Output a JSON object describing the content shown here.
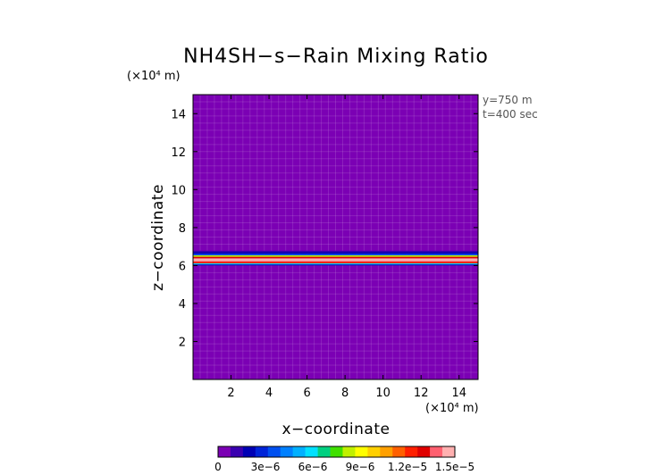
{
  "chart_data": {
    "type": "heatmap",
    "title": "NH4SH−s−Rain Mixing Ratio",
    "xlabel": "x−coordinate",
    "ylabel": "z−coordinate",
    "x_unit": "(×10⁴ m)",
    "z_unit": "(×10⁴ m)",
    "annotations": [
      "y=750 m",
      "t=400 sec"
    ],
    "xlim": [
      0,
      15
    ],
    "zlim": [
      0,
      15
    ],
    "x_ticks": [
      {
        "value": 2,
        "label": "2"
      },
      {
        "value": 4,
        "label": "4"
      },
      {
        "value": 6,
        "label": "6"
      },
      {
        "value": 8,
        "label": "8"
      },
      {
        "value": 10,
        "label": "10"
      },
      {
        "value": 12,
        "label": "12"
      },
      {
        "value": 14,
        "label": "14"
      }
    ],
    "z_ticks": [
      {
        "value": 2,
        "label": "2"
      },
      {
        "value": 4,
        "label": "4"
      },
      {
        "value": 6,
        "label": "6"
      },
      {
        "value": 8,
        "label": "8"
      },
      {
        "value": 10,
        "label": "10"
      },
      {
        "value": 12,
        "label": "12"
      },
      {
        "value": 14,
        "label": "14"
      }
    ],
    "background_value": 0,
    "layer_profile": [
      {
        "z": 6.0,
        "value": 2e-06
      },
      {
        "z": 6.06,
        "value": 6e-06
      },
      {
        "z": 6.12,
        "value": 1.2e-05
      },
      {
        "z": 6.22,
        "value": 1.45e-05
      },
      {
        "z": 6.3,
        "value": 1.5e-05
      },
      {
        "z": 6.38,
        "value": 1.3e-05
      },
      {
        "z": 6.46,
        "value": 8.5e-06
      },
      {
        "z": 6.54,
        "value": 3.5e-06
      },
      {
        "z": 6.62,
        "value": 2.2e-06
      },
      {
        "z": 6.7,
        "value": 1.5e-06
      },
      {
        "z": 6.78,
        "value": 0
      }
    ],
    "colorbar": {
      "min": 0,
      "max": 1.5e-05,
      "tick_values": [
        0,
        3e-06,
        6e-06,
        9e-06,
        1.2e-05,
        1.5e-05
      ],
      "tick_labels": [
        "0",
        "3e−6",
        "6e−6",
        "9e−6",
        "1.2e−5",
        "1.5e−5"
      ],
      "colors": [
        "#7b00b4",
        "#3a00b0",
        "#0000b4",
        "#0024d8",
        "#0050f0",
        "#0080ff",
        "#00b0ff",
        "#00e0ff",
        "#00d080",
        "#40e000",
        "#c0f000",
        "#ffff00",
        "#ffd000",
        "#ffa000",
        "#ff6000",
        "#ff2000",
        "#e00000",
        "#ff6070",
        "#ffb0b0"
      ]
    }
  }
}
